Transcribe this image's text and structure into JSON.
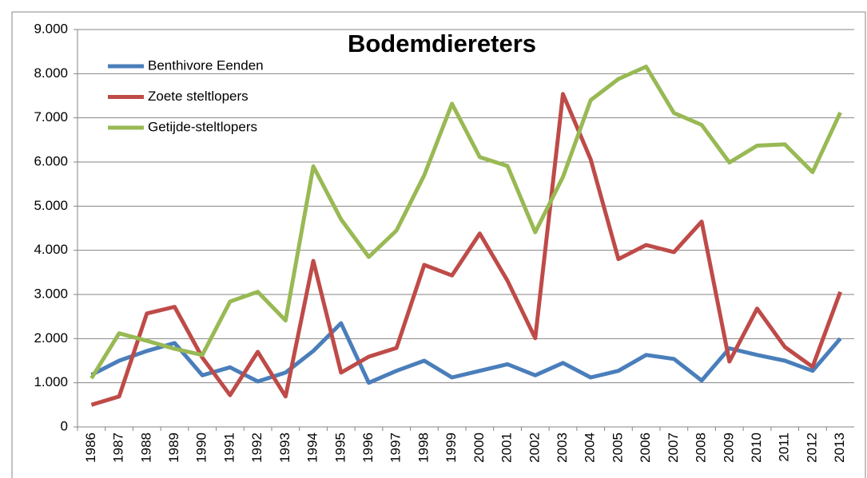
{
  "chart_data": {
    "type": "line",
    "title": "Bodemdiereters",
    "categories": [
      "1986",
      "1987",
      "1988",
      "1989",
      "1990",
      "1991",
      "1992",
      "1993",
      "1994",
      "1995",
      "1996",
      "1997",
      "1998",
      "1999",
      "2000",
      "2001",
      "2002",
      "2003",
      "2004",
      "2005",
      "2006",
      "2007",
      "2008",
      "2009",
      "2010",
      "2011",
      "2012",
      "2013"
    ],
    "series": [
      {
        "name": "Benthivore Eenden",
        "color": "#4a7ebb",
        "values": [
          1180,
          1500,
          1720,
          1900,
          1170,
          1350,
          1030,
          1230,
          1720,
          2350,
          1000,
          1270,
          1500,
          1120,
          1270,
          1420,
          1170,
          1450,
          1120,
          1270,
          1630,
          1540,
          1050,
          1780,
          1630,
          1500,
          1270,
          2000
        ]
      },
      {
        "name": "Zoete steltlopers",
        "color": "#be4b48",
        "values": [
          500,
          690,
          2570,
          2720,
          1570,
          720,
          1700,
          690,
          3760,
          1230,
          1590,
          1790,
          3670,
          3430,
          4380,
          3310,
          2010,
          7540,
          6060,
          3800,
          4120,
          3960,
          4650,
          1480,
          2680,
          1810,
          1360,
          3060
        ]
      },
      {
        "name": "Getijde-steltlopers",
        "color": "#98b954",
        "values": [
          1100,
          2120,
          1950,
          1770,
          1630,
          2840,
          3060,
          2410,
          5900,
          4700,
          3850,
          4450,
          5700,
          7320,
          6110,
          5910,
          4410,
          5660,
          7400,
          7880,
          8160,
          7110,
          6840,
          5990,
          6370,
          6400,
          5770,
          7120
        ]
      }
    ],
    "ylim": [
      0,
      9000
    ],
    "yticks": [
      0,
      {
        "value": 1000,
        "label": "1.000"
      },
      {
        "value": 2000,
        "label": "2.000"
      },
      {
        "value": 3000,
        "label": "3.000"
      },
      {
        "value": 4000,
        "label": "4.000"
      },
      {
        "value": 5000,
        "label": "5.000"
      },
      {
        "value": 6000,
        "label": "6.000"
      },
      {
        "value": 7000,
        "label": "7.000"
      },
      {
        "value": 8000,
        "label": "8.000"
      },
      {
        "value": 9000,
        "label": "9.000"
      }
    ],
    "grid": true,
    "legend": "top-left"
  }
}
